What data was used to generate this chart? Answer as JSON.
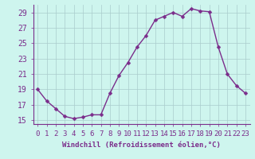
{
  "x": [
    0,
    1,
    2,
    3,
    4,
    5,
    6,
    7,
    8,
    9,
    10,
    11,
    12,
    13,
    14,
    15,
    16,
    17,
    18,
    19,
    20,
    21,
    22,
    23
  ],
  "y": [
    19,
    17.5,
    16.5,
    15.5,
    15.2,
    15.4,
    15.7,
    15.7,
    18.5,
    20.8,
    22.5,
    24.5,
    26.0,
    28.0,
    28.5,
    29.0,
    28.5,
    29.5,
    29.2,
    29.1,
    24.5,
    21.0,
    19.5,
    18.5
  ],
  "line_color": "#7b2d8b",
  "marker_color": "#7b2d8b",
  "bg_color": "#cef5ee",
  "grid_color": "#aacccc",
  "xlabel": "Windchill (Refroidissement éolien,°C)",
  "xlabel_color": "#7b2d8b",
  "tick_color": "#7b2d8b",
  "axis_color": "#7b2d8b",
  "ylim": [
    14.5,
    30
  ],
  "yticks": [
    15,
    17,
    19,
    21,
    23,
    25,
    27,
    29
  ],
  "xticks": [
    0,
    1,
    2,
    3,
    4,
    5,
    6,
    7,
    8,
    9,
    10,
    11,
    12,
    13,
    14,
    15,
    16,
    17,
    18,
    19,
    20,
    21,
    22,
    23
  ],
  "marker_size": 2.5,
  "line_width": 1.0,
  "xlabel_fontsize": 6.5,
  "tick_fontsize": 6.5,
  "ytick_fontsize": 7
}
